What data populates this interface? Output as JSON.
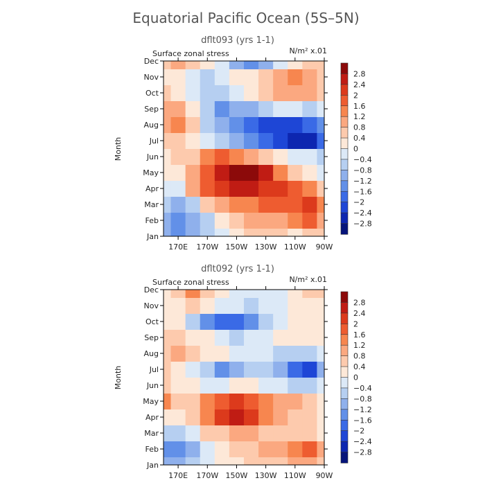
{
  "figure": {
    "title": "Equatorial Pacific Ocean (5S–5N)"
  },
  "panels_common": {
    "variable": "Surface zonal stress",
    "units": "N/m² x.01",
    "ylabel": "Month",
    "months": [
      "Jan",
      "Feb",
      "Mar",
      "Apr",
      "May",
      "Jun",
      "Jul",
      "Aug",
      "Sep",
      "Oct",
      "Nov",
      "Dec"
    ],
    "lon_ticks": [
      "170E",
      "170W",
      "150W",
      "130W",
      "110W",
      "90W"
    ],
    "legend_labels": [
      "2.8",
      "2.4",
      "2",
      "1.6",
      "1.2",
      "0.8",
      "0.4",
      "0",
      "−0.4",
      "−0.8",
      "−1.2",
      "−1.6",
      "−2",
      "−2.4",
      "−2.8"
    ],
    "legend_colors": [
      "#8c0a0a",
      "#c01c14",
      "#dc3a1c",
      "#ee5c30",
      "#f7864f",
      "#fba880",
      "#fdcaad",
      "#fde8d8",
      "#dce9f7",
      "#b6cff1",
      "#8fb0ec",
      "#6290e8",
      "#3a6ae6",
      "#1e46d6",
      "#0d26b0",
      "#06147a"
    ],
    "xlim_lon_east": [
      160,
      270
    ],
    "ylim_month": [
      1,
      12
    ]
  },
  "chart_data": [
    {
      "type": "heatmap",
      "title": "dflt093 (yrs 1-1)",
      "subtitle": "Surface zonal stress",
      "xlabel": "",
      "ylabel": "Month",
      "x": [
        160,
        170,
        180,
        190,
        200,
        210,
        220,
        230,
        240,
        250,
        260,
        270
      ],
      "y": [
        "Jan",
        "Feb",
        "Mar",
        "Apr",
        "May",
        "Jun",
        "Jul",
        "Aug",
        "Sep",
        "Oct",
        "Nov",
        "Dec"
      ],
      "values": [
        [
          -1.2,
          -1.4,
          -1.0,
          -0.6,
          -0.2,
          0.2,
          0.6,
          0.6,
          0.4,
          0.2,
          0.6,
          0.4
        ],
        [
          -1.0,
          -1.6,
          -1.2,
          -0.6,
          0.0,
          0.4,
          0.8,
          1.0,
          1.0,
          1.2,
          1.6,
          0.8
        ],
        [
          -0.8,
          -1.0,
          -0.6,
          0.4,
          0.8,
          1.2,
          1.4,
          1.6,
          1.6,
          1.6,
          2.0,
          1.2
        ],
        [
          -0.4,
          -0.2,
          0.8,
          1.6,
          2.0,
          2.6,
          2.6,
          2.2,
          2.0,
          1.6,
          1.2,
          0.6
        ],
        [
          0.0,
          0.2,
          0.8,
          1.6,
          2.4,
          3.0,
          3.0,
          2.6,
          1.4,
          0.6,
          0.2,
          -0.2
        ],
        [
          0.2,
          0.4,
          0.6,
          1.2,
          1.6,
          1.4,
          1.0,
          0.6,
          0.2,
          -0.2,
          -0.4,
          -0.6
        ],
        [
          0.6,
          0.4,
          0.2,
          -0.2,
          -0.6,
          -1.2,
          -1.6,
          -2.0,
          -2.4,
          -2.6,
          -2.6,
          -2.0
        ],
        [
          1.0,
          1.2,
          0.4,
          -0.6,
          -1.2,
          -1.6,
          -2.0,
          -2.2,
          -2.2,
          -2.2,
          -2.0,
          -1.4
        ],
        [
          0.8,
          0.8,
          0.2,
          -0.8,
          -1.4,
          -1.2,
          -1.0,
          -0.6,
          -0.4,
          -0.4,
          -0.6,
          -0.4
        ],
        [
          0.4,
          0.2,
          -0.2,
          -0.6,
          -0.6,
          -0.2,
          0.2,
          0.6,
          1.0,
          1.0,
          0.8,
          0.4
        ],
        [
          0.2,
          0.0,
          -0.4,
          -0.6,
          -0.4,
          0.0,
          0.2,
          0.4,
          0.8,
          1.2,
          0.8,
          0.4
        ],
        [
          0.4,
          0.8,
          0.6,
          0.2,
          -0.4,
          -1.2,
          -1.6,
          -1.2,
          -0.4,
          0.2,
          0.4,
          0.6
        ]
      ]
    },
    {
      "type": "heatmap",
      "title": "dflt092 (yrs 1-1)",
      "subtitle": "Surface zonal stress",
      "xlabel": "",
      "ylabel": "Month",
      "x": [
        160,
        170,
        180,
        190,
        200,
        210,
        220,
        230,
        240,
        250,
        260,
        270
      ],
      "y": [
        "Jan",
        "Feb",
        "Mar",
        "Apr",
        "May",
        "Jun",
        "Jul",
        "Aug",
        "Sep",
        "Oct",
        "Nov",
        "Dec"
      ],
      "values": [
        [
          -1.0,
          -1.2,
          -0.8,
          -0.4,
          0.0,
          0.2,
          0.4,
          0.6,
          0.6,
          0.8,
          0.8,
          0.4
        ],
        [
          -1.4,
          -1.6,
          -1.0,
          -0.4,
          0.2,
          0.4,
          0.6,
          0.8,
          1.0,
          1.2,
          1.6,
          1.0
        ],
        [
          -0.6,
          -0.8,
          -0.2,
          0.4,
          0.6,
          0.8,
          0.8,
          0.6,
          0.4,
          0.4,
          0.4,
          0.2
        ],
        [
          0.2,
          0.2,
          0.4,
          1.4,
          2.0,
          2.4,
          2.0,
          1.4,
          0.8,
          0.6,
          0.4,
          0.2
        ],
        [
          1.4,
          0.6,
          0.6,
          1.4,
          1.8,
          2.0,
          1.8,
          1.4,
          1.0,
          0.8,
          0.6,
          0.2
        ],
        [
          0.4,
          0.2,
          0.0,
          -0.2,
          -0.2,
          0.0,
          0.0,
          -0.2,
          -0.4,
          -0.6,
          -0.6,
          -0.4
        ],
        [
          0.4,
          0.2,
          -0.2,
          -0.8,
          -1.4,
          -1.2,
          -0.8,
          -0.6,
          -1.2,
          -2.0,
          -2.2,
          -1.2
        ],
        [
          0.6,
          0.8,
          0.6,
          0.2,
          0.0,
          -0.2,
          -0.2,
          -0.4,
          -0.6,
          -0.8,
          -0.8,
          -0.4
        ],
        [
          0.6,
          0.4,
          0.2,
          0.0,
          -0.4,
          -0.6,
          -0.4,
          -0.2,
          0.0,
          0.2,
          0.2,
          0.2
        ],
        [
          0.2,
          0.0,
          -0.6,
          -1.4,
          -1.8,
          -2.0,
          -1.4,
          -0.8,
          -0.4,
          0.0,
          0.2,
          0.2
        ],
        [
          0.0,
          0.2,
          0.4,
          0.2,
          -0.2,
          -0.4,
          -0.6,
          -0.4,
          -0.2,
          0.0,
          0.2,
          0.2
        ],
        [
          0.2,
          0.6,
          1.2,
          0.6,
          0.2,
          -0.2,
          -0.4,
          -0.4,
          -0.2,
          0.0,
          0.4,
          0.4
        ]
      ]
    }
  ]
}
